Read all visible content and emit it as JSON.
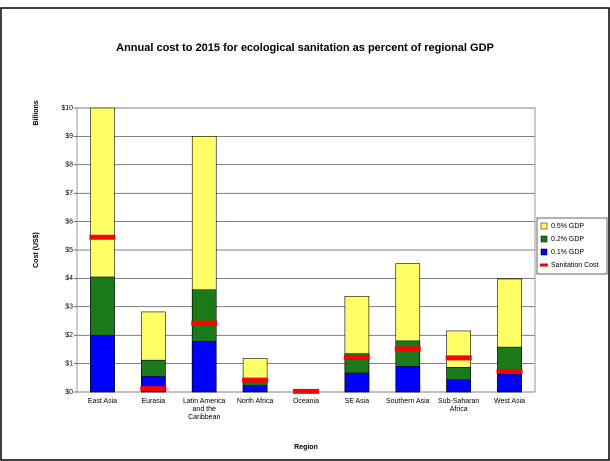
{
  "chart_data": {
    "type": "bar",
    "title": "Annual cost to 2015 for ecological sanitation as percent of regional GDP",
    "y_label": "Cost (US$)",
    "y_unit_label": "Billions",
    "x_label": "Region",
    "categories": [
      "East Asia",
      "Eurasia",
      "Latin America and the Caribbean",
      "North Africa",
      "Oceania",
      "SE Asia",
      "Southern Asia",
      "Sub-Saharan Africa",
      "West Asia"
    ],
    "series": [
      {
        "name": "0.5% GDP",
        "color": "#ffff66",
        "values": [
          10.0,
          2.82,
          9.0,
          1.18,
          0.05,
          3.37,
          4.52,
          2.15,
          3.98
        ]
      },
      {
        "name": "0.2% GDP",
        "color": "#1a7a1a",
        "values": [
          4.05,
          1.12,
          3.6,
          0.47,
          0.02,
          1.35,
          1.8,
          0.87,
          1.58
        ]
      },
      {
        "name": "0.1% GDP",
        "color": "#0000ff",
        "values": [
          2.0,
          0.55,
          1.78,
          0.22,
          0.01,
          0.67,
          0.9,
          0.43,
          0.63
        ]
      },
      {
        "name": "Sanitation Cost",
        "color": "#ff0000",
        "mark": "dash",
        "values": [
          5.45,
          0.12,
          2.42,
          0.42,
          0.02,
          1.22,
          1.52,
          1.2,
          0.72
        ]
      }
    ],
    "ylim": [
      0,
      10
    ],
    "yticks": [
      {
        "value": 0,
        "label": "$0"
      },
      {
        "value": 1,
        "label": "$1"
      },
      {
        "value": 2,
        "label": "$2"
      },
      {
        "value": 3,
        "label": "$3"
      },
      {
        "value": 4,
        "label": "$4"
      },
      {
        "value": 5,
        "label": "$5"
      },
      {
        "value": 6,
        "label": "$6"
      },
      {
        "value": 7,
        "label": "$7"
      },
      {
        "value": 8,
        "label": "$8"
      },
      {
        "value": 9,
        "label": "$9"
      },
      {
        "value": 10,
        "label": "$10"
      }
    ],
    "grid": true,
    "legend": "right"
  }
}
